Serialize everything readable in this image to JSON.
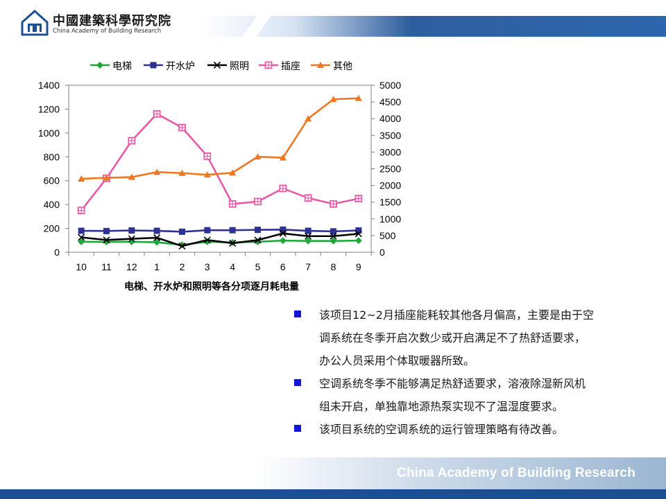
{
  "header": {
    "logo_cn": "中國建築科學研究院",
    "logo_en": "China Academy of Building Research"
  },
  "chart_data": {
    "type": "line",
    "title": "电梯、开水炉和照明等各分项逐月耗电量",
    "categories": [
      "10",
      "11",
      "12",
      "1",
      "2",
      "3",
      "4",
      "5",
      "6",
      "7",
      "8",
      "9"
    ],
    "y_left": {
      "ylim": [
        0,
        1400
      ],
      "ticks": [
        "0",
        "200",
        "400",
        "600",
        "800",
        "1000",
        "1200",
        "1400"
      ]
    },
    "y_right": {
      "ylim": [
        0,
        5000
      ],
      "ticks": [
        "0",
        "500",
        "1000",
        "1500",
        "2000",
        "2500",
        "3000",
        "3500",
        "4000",
        "4500",
        "5000"
      ]
    },
    "grid": false,
    "legend_position": "top",
    "series": [
      {
        "name": "电梯",
        "axis": "left",
        "marker": "diamond",
        "color": "#1fa83a",
        "values": [
          88,
          87,
          88,
          84,
          62,
          88,
          82,
          88,
          98,
          95,
          95,
          98
        ]
      },
      {
        "name": "开水炉",
        "axis": "left",
        "marker": "square",
        "color": "#2e3192",
        "values": [
          180,
          178,
          183,
          180,
          172,
          185,
          185,
          188,
          190,
          180,
          175,
          183
        ]
      },
      {
        "name": "照明",
        "axis": "left",
        "marker": "x",
        "color": "#000000",
        "values": [
          125,
          103,
          113,
          122,
          52,
          103,
          76,
          102,
          158,
          135,
          135,
          155
        ]
      },
      {
        "name": "插座",
        "axis": "left",
        "marker": "hatched-square",
        "color": "#e85aa8",
        "values": [
          350,
          620,
          935,
          1160,
          1045,
          805,
          405,
          425,
          535,
          455,
          405,
          450
        ]
      },
      {
        "name": "其他",
        "axis": "right",
        "marker": "triangle",
        "color": "#ee7720",
        "values": [
          2200,
          2230,
          2250,
          2400,
          2370,
          2320,
          2380,
          2860,
          2830,
          4000,
          4580,
          4610
        ]
      }
    ]
  },
  "bullets": [
    {
      "text": "该项目12~2月插座能耗较其他各月偏高，主要是由于空",
      "cont": [
        "调系统在冬季开启次数少或开启满足不了热舒适要求，",
        "办公人员采用个体取暖器所致。"
      ]
    },
    {
      "text": "空调系统冬季不能够满足热舒适要求，溶液除湿新风机",
      "cont": [
        "组未开启，单独靠地源热泵实现不了温湿度要求。"
      ]
    },
    {
      "text": "该项目系统的空调系统的运行管理策略有待改善。",
      "cont": []
    }
  ],
  "footer": {
    "text": "China Academy of Building Research"
  }
}
